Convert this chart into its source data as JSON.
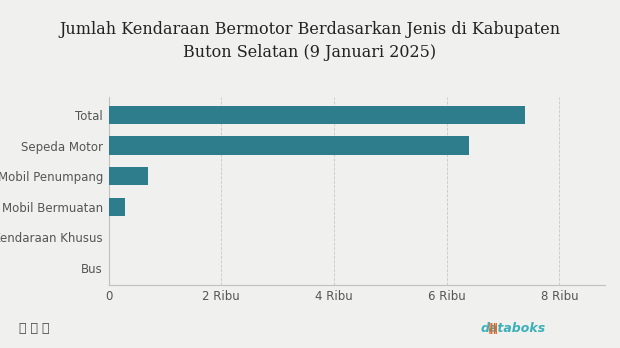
{
  "title": "Jumlah Kendaraan Bermotor Berdasarkan Jenis di Kabupaten\nButon Selatan (9 Januari 2025)",
  "categories": [
    "Bus",
    "Kendaraan Khusus",
    "Mobil Bermuatan",
    "Mobil Penumpang",
    "Sepeda Motor",
    "Total"
  ],
  "values": [
    0,
    10,
    290,
    700,
    6390,
    7390
  ],
  "bar_color": "#2e7d8c",
  "background_color": "#f0f0ee",
  "xlim": [
    0,
    8800
  ],
  "xticks": [
    0,
    2000,
    4000,
    6000,
    8000
  ],
  "xtick_labels": [
    "0",
    "2 Ribu",
    "4 Ribu",
    "6 Ribu",
    "8 Ribu"
  ],
  "title_fontsize": 11.5,
  "tick_fontsize": 8.5,
  "grid_color": "#c8c8c8",
  "spine_color": "#c0c0c0",
  "footer_icon_color": "#444444",
  "databoks_color": "#3ab0b8",
  "databoks_icon_color": "#e06020"
}
